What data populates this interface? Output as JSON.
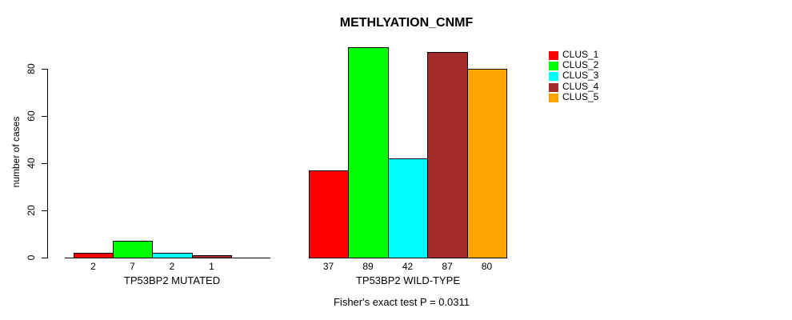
{
  "chart_data": {
    "type": "bar",
    "title": "METHLYATION_CNMF",
    "ylabel": "number of cases",
    "xlabel": "",
    "ylim": [
      0,
      89
    ],
    "yticks": [
      0,
      20,
      40,
      60,
      80
    ],
    "grid": false,
    "legend_position": "right-outside",
    "series": [
      {
        "name": "CLUS_1",
        "color": "#FF0000"
      },
      {
        "name": "CLUS_2",
        "color": "#00FF00"
      },
      {
        "name": "CLUS_3",
        "color": "#00FFFF"
      },
      {
        "name": "CLUS_4",
        "color": "#A52A2A"
      },
      {
        "name": "CLUS_5",
        "color": "#FFA500"
      }
    ],
    "groups": [
      {
        "label": "TP53BP2 MUTATED",
        "values": [
          2,
          7,
          2,
          1,
          0
        ],
        "value_labels": [
          "2",
          "7",
          "2",
          "1",
          ""
        ]
      },
      {
        "label": "TP53BP2 WILD-TYPE",
        "values": [
          37,
          89,
          42,
          87,
          80
        ],
        "value_labels": [
          "37",
          "89",
          "42",
          "87",
          "80"
        ]
      }
    ],
    "annotation": "Fisher's exact test P = 0.0311"
  }
}
